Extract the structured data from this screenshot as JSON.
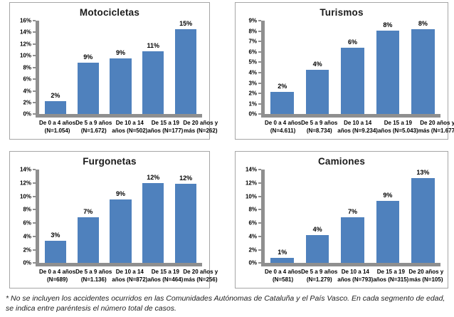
{
  "page": {
    "footnote": "* No se incluyen los accidentes ocurridos en las Comunidades Autónomas de Cataluña y el País Vasco. En cada segmento de edad, se indica entre paréntesis el número total de casos."
  },
  "colors": {
    "bar": "#4F81BD",
    "axis": "#8f8f8f",
    "panel_border": "#a6a6a6"
  },
  "chart_data": [
    {
      "type": "bar",
      "title": "Motocicletas",
      "categories": [
        "De 0 a 4 años (N=1.054)",
        "De 5 a 9 años (N=1.672)",
        "De 10 a 14 años (N=502)",
        "De 15 a 19 años (N=177)",
        "De 20 años y más (N=262)"
      ],
      "category_lines": [
        [
          "De 0 a 4 años",
          "(N=1.054)"
        ],
        [
          "De 5 a 9 años",
          "(N=1.672)"
        ],
        [
          "De 10 a 14",
          "años (N=502)"
        ],
        [
          "De 15 a 19",
          "años (N=177)"
        ],
        [
          "De 20 años y",
          "más (N=262)"
        ]
      ],
      "values": [
        2.2,
        8.8,
        9.5,
        10.8,
        14.6
      ],
      "value_labels": [
        "2%",
        "9%",
        "9%",
        "11%",
        "15%"
      ],
      "xlabel": "",
      "ylabel": "",
      "ylim": [
        0,
        16
      ],
      "ytick_step": 2,
      "grid": false,
      "legend": false
    },
    {
      "type": "bar",
      "title": "Turismos",
      "categories": [
        "De 0 a 4 años (N=4.611)",
        "De 5 a 9 años (N=8.734)",
        "De 10 a 14 años (N=9.234)",
        "De 15 a 19 años (N=5.043)",
        "De 20 años y más (N=1.677)"
      ],
      "category_lines": [
        [
          "De 0 a 4 años",
          "(N=4.611)"
        ],
        [
          "De 5 a 9 años",
          "(N=8.734)"
        ],
        [
          "De 10 a 14",
          "años (N=9.234)"
        ],
        [
          "De 15 a 19",
          "años (N=5.043)"
        ],
        [
          "De 20 años y",
          "más (N=1.677)"
        ]
      ],
      "values": [
        2.15,
        4.3,
        6.4,
        8.05,
        8.2
      ],
      "value_labels": [
        "2%",
        "4%",
        "6%",
        "8%",
        "8%"
      ],
      "xlabel": "",
      "ylabel": "",
      "ylim": [
        0,
        9
      ],
      "ytick_step": 1,
      "grid": false,
      "legend": false
    },
    {
      "type": "bar",
      "title": "Furgonetas",
      "categories": [
        "De 0 a 4 años (N=689)",
        "De 5 a 9 años (N=1.136)",
        "De 10 a 14 años (N=872)",
        "De 15 a 19 años (N=464)",
        "De 20 años y más (N=256)"
      ],
      "category_lines": [
        [
          "De 0 a 4 años",
          "(N=689)"
        ],
        [
          "De 5 a 9 años",
          "(N=1.136)"
        ],
        [
          "De 10 a 14",
          "años (N=872)"
        ],
        [
          "De 15 a 19",
          "años (N=464)"
        ],
        [
          "De 20 años y",
          "más (N=256)"
        ]
      ],
      "values": [
        3.35,
        6.9,
        9.5,
        11.95,
        11.85
      ],
      "value_labels": [
        "3%",
        "7%",
        "9%",
        "12%",
        "12%"
      ],
      "xlabel": "",
      "ylabel": "",
      "ylim": [
        0,
        14
      ],
      "ytick_step": 2,
      "grid": false,
      "legend": false
    },
    {
      "type": "bar",
      "title": "Camiones",
      "categories": [
        "De 0 a 4 años (N=581)",
        "De 5 a 9 años (N=1.279)",
        "De 10 a 14 años (N=793)",
        "De 15 a 19 años (N=315)",
        "De 20 años y más (N=105)"
      ],
      "category_lines": [
        [
          "De 0 a 4 años",
          "(N=581)"
        ],
        [
          "De 5 a 9 años",
          "(N=1.279)"
        ],
        [
          "De 10 a 14",
          "años (N=793)"
        ],
        [
          "De 15 a 19",
          "años (N=315)"
        ],
        [
          "De 20 años y",
          "más (N=105)"
        ]
      ],
      "values": [
        0.8,
        4.2,
        6.85,
        9.3,
        13.4
      ],
      "value_labels": [
        "1%",
        "4%",
        "7%",
        "9%",
        "13%"
      ],
      "xlabel": "",
      "ylabel": "",
      "ylim": [
        0,
        14
      ],
      "ytick_step": 2,
      "grid": false,
      "legend": false
    }
  ]
}
